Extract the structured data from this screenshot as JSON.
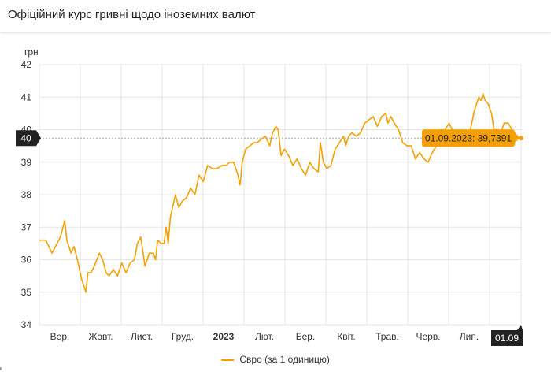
{
  "header": {
    "title": "Офіційний курс гривні щодо іноземних валют"
  },
  "colors": {
    "series": "#f5a000",
    "grid": "#e6e6e6",
    "crosshair": "#aaaaaa",
    "badge_dark": "#222222",
    "tooltip_bg": "#f5a000"
  },
  "chart_data": {
    "type": "line",
    "ylabel": "грн",
    "ylim": [
      34,
      42
    ],
    "yticks": [
      "34",
      "35",
      "36",
      "37",
      "38",
      "39",
      "40",
      "41",
      "42"
    ],
    "xticks": [
      {
        "label": "Вер.",
        "bold": false
      },
      {
        "label": "Жовт.",
        "bold": false
      },
      {
        "label": "Лист.",
        "bold": false
      },
      {
        "label": "Груд.",
        "bold": false
      },
      {
        "label": "2023",
        "bold": true
      },
      {
        "label": "Лют.",
        "bold": false
      },
      {
        "label": "Бер.",
        "bold": false
      },
      {
        "label": "Квіт.",
        "bold": false
      },
      {
        "label": "Трав.",
        "bold": false
      },
      {
        "label": "Черв.",
        "bold": false
      },
      {
        "label": "Лип.",
        "bold": false
      }
    ],
    "crosshair": {
      "y_badge": "40",
      "x_badge": "01.09",
      "y_value": 39.7391
    },
    "tooltip": "01.09.2023: 39,7391",
    "series": [
      {
        "name": "Євро (за 1 одиницю)",
        "values": [
          [
            0.0,
            36.6
          ],
          [
            1.5,
            36.6
          ],
          [
            3.0,
            36.2
          ],
          [
            4.2,
            36.5
          ],
          [
            5.0,
            36.7
          ],
          [
            6.0,
            37.2
          ],
          [
            6.5,
            36.6
          ],
          [
            7.5,
            36.2
          ],
          [
            8.2,
            36.4
          ],
          [
            9.0,
            36.0
          ],
          [
            10.0,
            35.4
          ],
          [
            11.0,
            35.0
          ],
          [
            11.5,
            35.6
          ],
          [
            12.2,
            35.6
          ],
          [
            13.0,
            35.8
          ],
          [
            14.2,
            36.2
          ],
          [
            15.0,
            36.0
          ],
          [
            15.8,
            35.6
          ],
          [
            16.5,
            35.5
          ],
          [
            17.5,
            35.7
          ],
          [
            18.5,
            35.5
          ],
          [
            19.5,
            35.9
          ],
          [
            20.5,
            35.6
          ],
          [
            21.5,
            35.9
          ],
          [
            22.5,
            36.0
          ],
          [
            23.2,
            36.5
          ],
          [
            24.0,
            36.7
          ],
          [
            25.0,
            35.8
          ],
          [
            26.0,
            36.2
          ],
          [
            27.0,
            36.2
          ],
          [
            27.5,
            36.0
          ],
          [
            28.0,
            36.6
          ],
          [
            28.8,
            36.5
          ],
          [
            29.5,
            36.5
          ],
          [
            30.0,
            37.0
          ],
          [
            30.5,
            36.5
          ],
          [
            31.0,
            37.3
          ],
          [
            31.5,
            37.6
          ],
          [
            32.2,
            38.0
          ],
          [
            33.0,
            37.6
          ],
          [
            33.8,
            37.8
          ],
          [
            34.8,
            37.9
          ],
          [
            35.8,
            38.2
          ],
          [
            36.8,
            38.0
          ],
          [
            37.8,
            38.6
          ],
          [
            38.8,
            38.4
          ],
          [
            39.8,
            38.9
          ],
          [
            41.0,
            38.8
          ],
          [
            42.0,
            38.8
          ],
          [
            43.2,
            38.9
          ],
          [
            44.2,
            38.9
          ],
          [
            45.0,
            39.0
          ],
          [
            46.0,
            39.0
          ],
          [
            47.0,
            38.6
          ],
          [
            47.5,
            38.3
          ],
          [
            48.0,
            39.0
          ],
          [
            48.8,
            39.4
          ],
          [
            49.8,
            39.5
          ],
          [
            50.8,
            39.6
          ],
          [
            51.5,
            39.6
          ],
          [
            52.5,
            39.7
          ],
          [
            53.5,
            39.8
          ],
          [
            54.5,
            39.5
          ],
          [
            55.2,
            39.9
          ],
          [
            56.0,
            40.1
          ],
          [
            56.5,
            40.0
          ],
          [
            57.2,
            39.2
          ],
          [
            58.0,
            39.4
          ],
          [
            59.0,
            39.2
          ],
          [
            60.0,
            38.9
          ],
          [
            61.0,
            39.1
          ],
          [
            62.0,
            38.8
          ],
          [
            63.0,
            38.6
          ],
          [
            64.0,
            39.0
          ],
          [
            65.0,
            38.8
          ],
          [
            66.0,
            38.7
          ],
          [
            66.5,
            39.6
          ],
          [
            67.2,
            39.0
          ],
          [
            68.0,
            38.8
          ],
          [
            69.0,
            38.9
          ],
          [
            70.0,
            39.4
          ],
          [
            71.0,
            39.6
          ],
          [
            72.0,
            39.8
          ],
          [
            72.5,
            39.5
          ],
          [
            73.2,
            39.8
          ],
          [
            74.0,
            39.9
          ],
          [
            75.0,
            39.8
          ],
          [
            76.0,
            39.9
          ],
          [
            77.0,
            40.2
          ],
          [
            78.0,
            40.3
          ],
          [
            79.0,
            40.4
          ],
          [
            80.0,
            40.1
          ],
          [
            81.0,
            40.4
          ],
          [
            82.0,
            40.5
          ],
          [
            82.5,
            40.2
          ],
          [
            83.2,
            40.4
          ],
          [
            84.0,
            40.2
          ],
          [
            85.0,
            40.0
          ],
          [
            86.0,
            39.6
          ],
          [
            87.0,
            39.5
          ],
          [
            88.0,
            39.5
          ],
          [
            89.0,
            39.1
          ],
          [
            90.0,
            39.3
          ],
          [
            91.0,
            39.1
          ],
          [
            92.0,
            39.0
          ],
          [
            93.0,
            39.3
          ],
          [
            94.0,
            39.5
          ],
          [
            95.0,
            40.0
          ],
          [
            95.5,
            39.8
          ],
          [
            96.0,
            40.0
          ],
          [
            97.0,
            40.2
          ],
          [
            98.0,
            39.9
          ],
          [
            99.0,
            39.8
          ],
          [
            100.0,
            40.0
          ],
          [
            101.0,
            39.9
          ],
          [
            102.0,
            40.0
          ],
          [
            103.0,
            40.6
          ],
          [
            104.0,
            41.0
          ],
          [
            104.5,
            40.9
          ],
          [
            105.0,
            41.1
          ],
          [
            105.5,
            40.9
          ],
          [
            106.2,
            40.8
          ],
          [
            107.0,
            40.5
          ],
          [
            107.6,
            40.0
          ],
          [
            108.5,
            40.0
          ],
          [
            109.2,
            39.9
          ],
          [
            110.0,
            40.2
          ],
          [
            111.0,
            40.2
          ],
          [
            111.8,
            40.0
          ],
          [
            112.5,
            39.9
          ],
          [
            113.5,
            39.7391
          ]
        ]
      }
    ]
  }
}
